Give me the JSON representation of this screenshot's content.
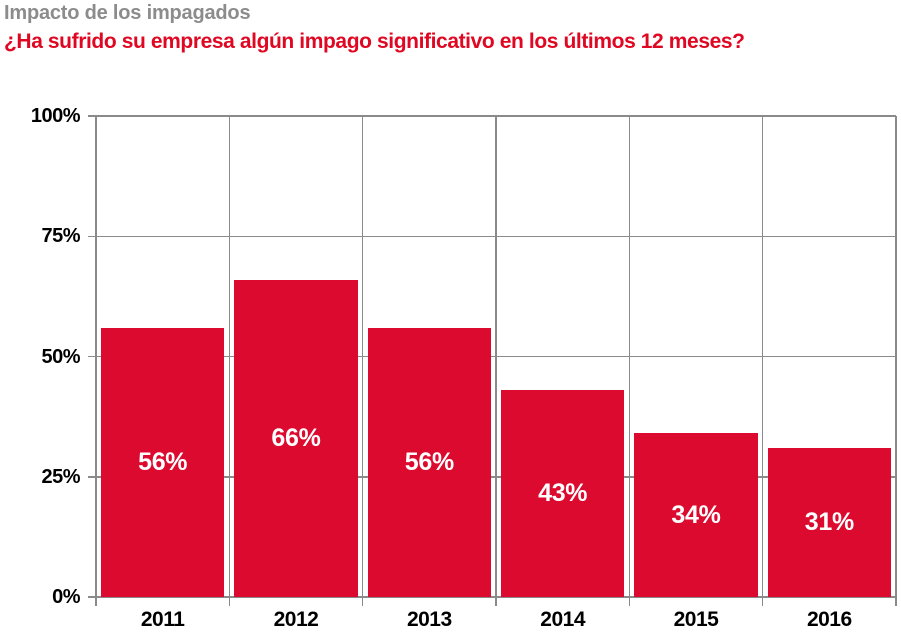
{
  "header": {
    "title": "Impacto de los impagados",
    "subtitle": "¿Ha sufrido su empresa algún impago significativo en los últimos 12 meses?"
  },
  "colors": {
    "bar": "#DB0A2E",
    "barLabel": "#FFFFFF",
    "title": "#8C8C8C",
    "subtitle": "#E00722",
    "grid": "#8A8A8A",
    "axisText": "#000000"
  },
  "chart_data": {
    "type": "bar",
    "title": "Impacto de los impagados",
    "subtitle": "¿Ha sufrido su empresa algún impago significativo en los últimos 12 meses?",
    "categories": [
      "2011",
      "2012",
      "2013",
      "2014",
      "2015",
      "2016"
    ],
    "values": [
      56,
      66,
      56,
      43,
      34,
      31
    ],
    "value_labels": [
      "56%",
      "66%",
      "56%",
      "43%",
      "34%",
      "31%"
    ],
    "y_tick_values": [
      0,
      25,
      50,
      75,
      100
    ],
    "y_ticks": [
      "0%",
      "25%",
      "50%",
      "75%",
      "100%"
    ],
    "ylim": [
      0,
      100
    ],
    "xlabel": "",
    "ylabel": "",
    "grid": "on",
    "legend": "none",
    "bar_label_position": "center-inside"
  }
}
